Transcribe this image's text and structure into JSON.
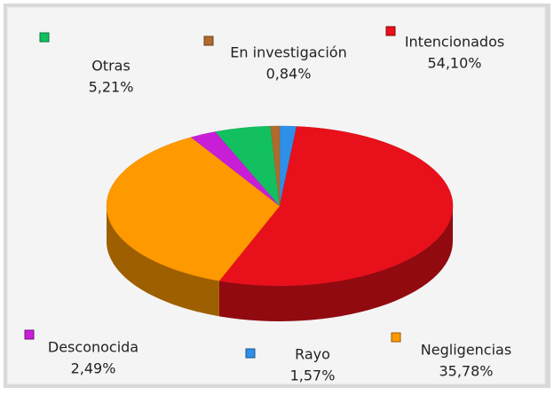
{
  "chart_data": {
    "type": "pie",
    "categories": [
      "Rayo",
      "Intencionados",
      "Negligencias",
      "Desconocida",
      "Otras",
      "En investigación"
    ],
    "values": [
      1.57,
      54.1,
      35.78,
      2.49,
      5.21,
      0.84
    ],
    "value_labels": [
      "1,57%",
      "54,10%",
      "35,78%",
      "2,49%",
      "5,21%",
      "0,84%"
    ],
    "colors": [
      "#2e8fe8",
      "#e8101a",
      "#ff9900",
      "#c81ed8",
      "#12c060",
      "#b06a2c"
    ]
  }
}
